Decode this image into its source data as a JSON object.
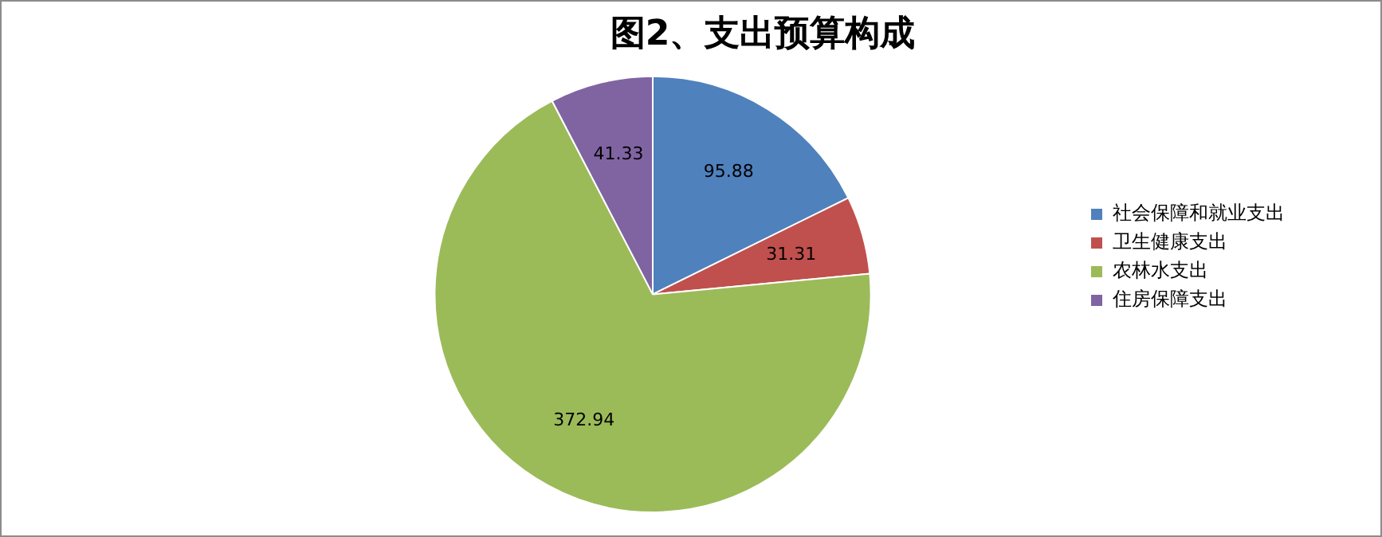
{
  "chart_data": {
    "type": "pie",
    "title": "图2、支出预算构成",
    "categories": [
      "社会保障和就业支出",
      "卫生健康支出",
      "农林水支出",
      "住房保障支出"
    ],
    "values": [
      95.88,
      31.31,
      372.94,
      41.33
    ],
    "colors": [
      "#4f81bd",
      "#c0504d",
      "#9bbb59",
      "#8064a2"
    ],
    "data_labels": true,
    "legend": "right"
  }
}
